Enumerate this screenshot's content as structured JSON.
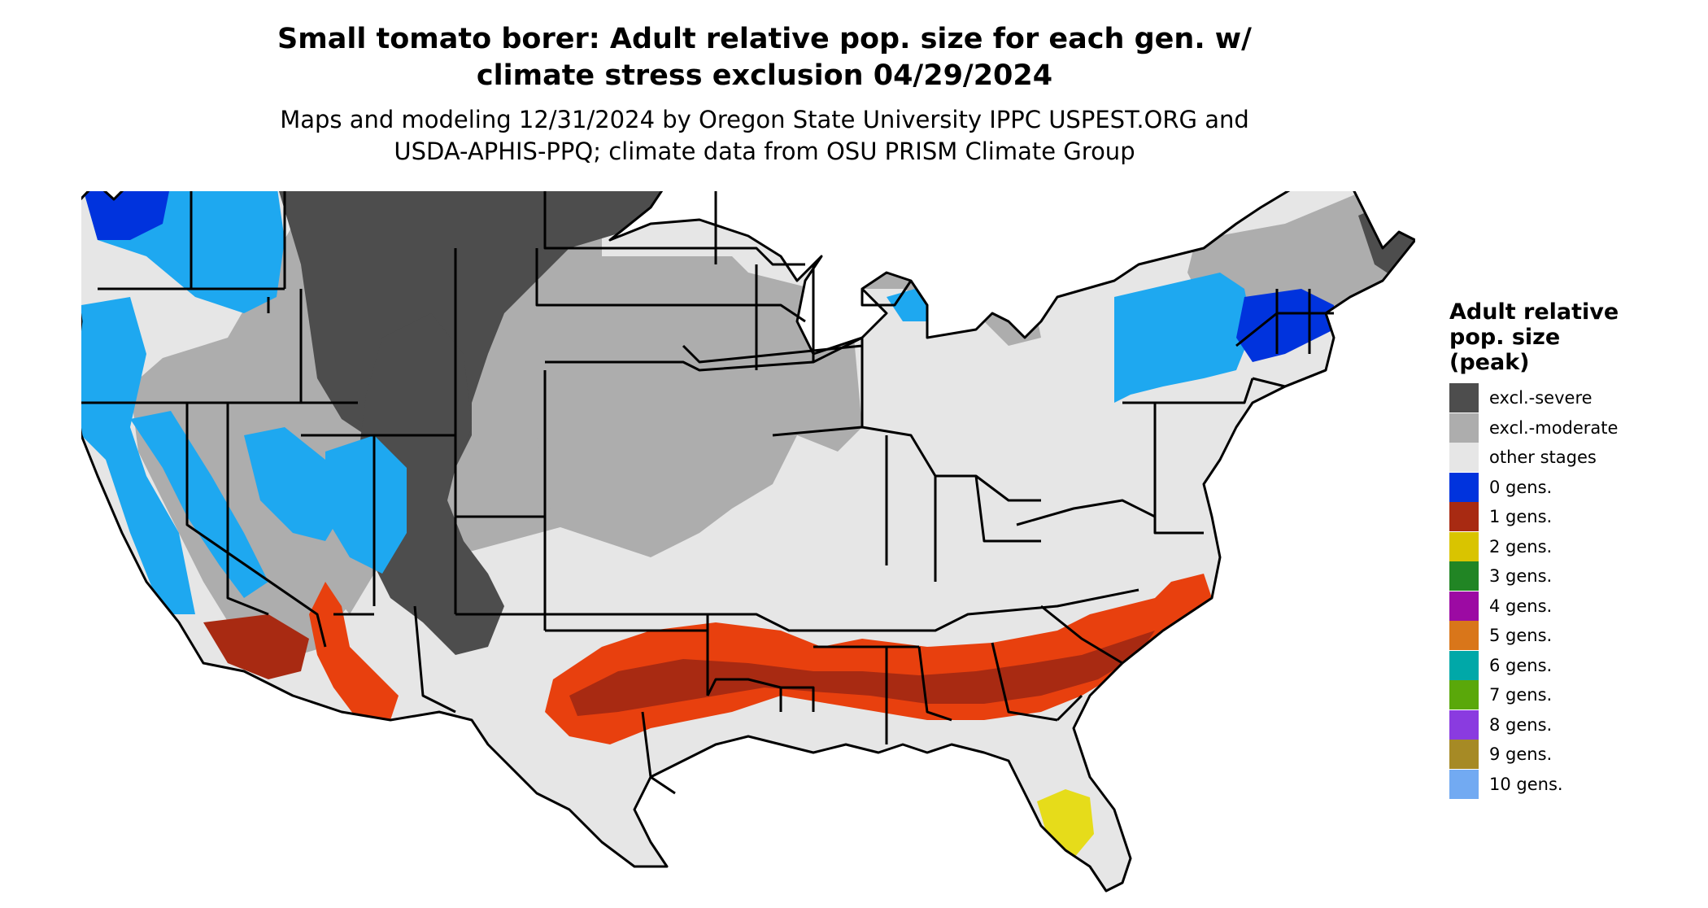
{
  "title": {
    "line1": "Small tomato borer: Adult relative pop. size for each gen. w/",
    "line2": "climate stress exclusion 04/29/2024"
  },
  "subtitle": {
    "line1": "Maps and modeling 12/31/2024 by Oregon State University IPPC USPEST.ORG and",
    "line2": "USDA-APHIS-PPQ; climate data from OSU PRISM Climate Group"
  },
  "legend": {
    "title_line1": "Adult relative",
    "title_line2": "pop. size",
    "title_line3": "(peak)",
    "items": [
      {
        "label": "excl.-severe",
        "color": "#4d4d4d"
      },
      {
        "label": "excl.-moderate",
        "color": "#adadad"
      },
      {
        "label": "other stages",
        "color": "#e6e6e6"
      },
      {
        "label": "0 gens.",
        "color": "#0033dd"
      },
      {
        "label": "1 gens.",
        "color": "#a82a12"
      },
      {
        "label": "2 gens.",
        "color": "#d9c400"
      },
      {
        "label": "3 gens.",
        "color": "#218524"
      },
      {
        "label": "4 gens.",
        "color": "#9c0aa3"
      },
      {
        "label": "5 gens.",
        "color": "#d9761a"
      },
      {
        "label": "6 gens.",
        "color": "#00a8a8"
      },
      {
        "label": "7 gens.",
        "color": "#5aa80a"
      },
      {
        "label": "8 gens.",
        "color": "#8a3be0"
      },
      {
        "label": "9 gens.",
        "color": "#a68a25"
      },
      {
        "label": "10 gens.",
        "color": "#72aaf2"
      }
    ]
  },
  "map_colors": {
    "background": "#e6e6e6",
    "severe": "#4d4d4d",
    "moderate": "#adadad",
    "cold_light": "#1ea8f0",
    "cold_dark": "#0033dd",
    "one_gen": "#a82a12",
    "one_gen_bright": "#e8400e",
    "two_gen": "#e6dc1a",
    "border": "#000000"
  }
}
